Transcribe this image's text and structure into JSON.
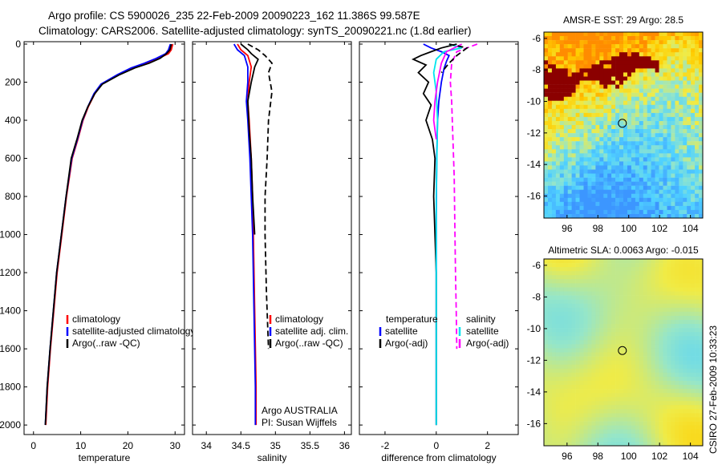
{
  "header": {
    "line1": "Argo profile: CS 5900026_235 22-Feb-2009 20090223_162 11.386S 99.587E",
    "line2": "Climatology: CARS2006. Satellite-adjusted climatology: synTS_20090221.nc (1.8d earlier)"
  },
  "colors": {
    "climatology": "#ff0000",
    "satellite": "#0000ff",
    "argo": "#000000",
    "temperature_diff": "#000000",
    "salinity_diff": "#ff00ff",
    "satellite_diff": "#00e5ee",
    "sst_land": "#8b0000",
    "sla_ocean": "#bfe07a"
  },
  "chart_data": [
    {
      "type": "line",
      "id": "temperature",
      "title": "",
      "xlabel": "temperature",
      "ylabel": "",
      "xlim": [
        -2,
        32
      ],
      "ylim": [
        2050,
        0
      ],
      "y_reversed": true,
      "xticks": [
        0,
        10,
        20,
        30
      ],
      "yticks": [
        0,
        200,
        400,
        600,
        800,
        1000,
        1200,
        1400,
        1600,
        1800,
        2000
      ],
      "legend": [
        "climatology",
        "satellite-adjusted climatology",
        "Argo(..raw -QC)"
      ],
      "legend_position": "lower-right",
      "series": [
        {
          "name": "climatology",
          "color_key": "climatology",
          "dash": false,
          "x": [
            29.5,
            29.2,
            28.6,
            26.5,
            24.0,
            21.0,
            18.0,
            14.5,
            13.0,
            11.6,
            10.5,
            9.4,
            8.2,
            7.0,
            6.0,
            5.0,
            4.3,
            3.6,
            3.0,
            2.6
          ],
          "y": [
            0,
            30,
            50,
            75,
            100,
            125,
            160,
            210,
            260,
            330,
            400,
            500,
            600,
            800,
            1000,
            1200,
            1400,
            1600,
            1800,
            2000
          ]
        },
        {
          "name": "satellite-adjusted climatology",
          "color_key": "satellite",
          "dash": false,
          "x": [
            29.0,
            28.6,
            28.0,
            26.0,
            23.5,
            20.7,
            17.8,
            14.3,
            12.8,
            11.5,
            10.4,
            9.3,
            8.1,
            6.9,
            5.9,
            4.9,
            4.2,
            3.5,
            2.9,
            2.5
          ],
          "y": [
            0,
            30,
            50,
            75,
            100,
            125,
            160,
            210,
            260,
            330,
            400,
            500,
            600,
            800,
            1000,
            1200,
            1400,
            1600,
            1800,
            2000
          ]
        },
        {
          "name": "Argo(..raw -QC)",
          "color_key": "argo",
          "dash": false,
          "x": [
            29.2,
            28.9,
            28.2,
            26.8,
            24.5,
            21.5,
            18.3,
            14.6,
            13.0,
            11.5,
            10.3,
            9.2,
            8.0,
            6.9,
            5.9,
            4.9,
            4.2,
            3.5,
            2.9,
            2.5
          ],
          "y": [
            0,
            30,
            50,
            75,
            100,
            125,
            160,
            210,
            260,
            330,
            400,
            500,
            600,
            800,
            1000,
            1200,
            1400,
            1600,
            1800,
            2000
          ]
        }
      ]
    },
    {
      "type": "line",
      "id": "salinity",
      "title": "",
      "xlabel": "salinity",
      "ylabel": "",
      "xlim": [
        33.8,
        36.1
      ],
      "ylim": [
        2050,
        0
      ],
      "y_reversed": true,
      "xticks": [
        34,
        34.5,
        35,
        35.5,
        36
      ],
      "xticklabels": [
        "34",
        "34.5",
        "35",
        "35.5",
        "36"
      ],
      "legend": [
        "climatology",
        "satellite adj. clim.",
        "Argo(..raw -QC)"
      ],
      "legend_position": "lower-right",
      "annotation": [
        "Argo AUSTRALIA",
        "PI: Susan Wijffels"
      ],
      "series": [
        {
          "name": "climatology",
          "color_key": "climatology",
          "dash": false,
          "x": [
            34.45,
            34.5,
            34.6,
            34.65,
            34.62,
            34.6,
            34.62,
            34.65,
            34.67,
            34.68,
            34.7,
            34.72,
            34.72
          ],
          "y": [
            0,
            30,
            60,
            120,
            200,
            300,
            400,
            600,
            800,
            1000,
            1400,
            1800,
            2000
          ]
        },
        {
          "name": "satellite adj. clim.",
          "color_key": "satellite",
          "dash": false,
          "x": [
            34.4,
            34.45,
            34.55,
            34.6,
            34.6,
            34.58,
            34.6,
            34.63,
            34.65,
            34.67,
            34.69,
            34.71,
            34.71
          ],
          "y": [
            0,
            30,
            60,
            120,
            200,
            300,
            400,
            600,
            800,
            1000,
            1400,
            1800,
            2000
          ]
        },
        {
          "name": "Argo(..raw -QC)",
          "color_key": "argo",
          "dash": false,
          "x": [
            34.5,
            34.6,
            34.65,
            34.75,
            34.7,
            34.65,
            34.6,
            34.62,
            34.65,
            34.67,
            34.7
          ],
          "y": [
            0,
            30,
            50,
            80,
            120,
            200,
            300,
            450,
            600,
            800,
            1000
          ]
        },
        {
          "name": "Argo(..raw -QC)",
          "color_key": "argo",
          "dash": true,
          "x": [
            34.6,
            34.75,
            34.85,
            34.95,
            34.9,
            34.95,
            34.9,
            34.88,
            34.85,
            34.85,
            34.87,
            34.9
          ],
          "y": [
            0,
            30,
            60,
            100,
            150,
            250,
            400,
            600,
            800,
            1000,
            1300,
            1600
          ]
        }
      ]
    },
    {
      "type": "line",
      "id": "difference",
      "title": "",
      "xlabel": "difference from climatology",
      "ylabel": "",
      "xlim": [
        -3,
        3.2
      ],
      "ylim": [
        2050,
        0
      ],
      "y_reversed": true,
      "xticks": [
        -2,
        0,
        2
      ],
      "legend_left": [
        "temperature",
        "satellite",
        "Argo(-adj)"
      ],
      "legend_right": [
        "salinity",
        "satellite",
        "Argo(-adj)"
      ],
      "series": [
        {
          "name": "temperature satellite",
          "color_key": "satellite",
          "dash": false,
          "x": [
            -0.5,
            -0.2,
            0.2,
            0.5,
            0.4,
            0.3,
            0.2,
            0.1,
            0.05,
            0.02,
            0.0,
            0.0,
            0.0,
            0.0
          ],
          "y": [
            0,
            20,
            40,
            60,
            90,
            130,
            200,
            300,
            400,
            600,
            900,
            1300,
            1700,
            2000
          ]
        },
        {
          "name": "temperature Argo(-adj)",
          "color_key": "temperature_diff",
          "dash": false,
          "x": [
            0.8,
            0.2,
            -0.2,
            -0.6,
            -0.9,
            -0.4,
            -0.7,
            -0.3,
            -0.5,
            -0.2,
            -0.4,
            -0.15,
            -0.05,
            -0.1,
            0.0,
            0.0,
            0.0
          ],
          "y": [
            0,
            20,
            40,
            60,
            80,
            110,
            150,
            200,
            260,
            320,
            400,
            500,
            600,
            800,
            1200,
            1600,
            2000
          ]
        },
        {
          "name": "salinity satellite",
          "color_key": "satellite_diff",
          "dash": false,
          "x": [
            0.5,
            1.0,
            0.3,
            0.0,
            -0.1,
            0.0,
            0.05,
            0.0,
            0.0,
            0.0
          ],
          "y": [
            0,
            20,
            40,
            80,
            150,
            250,
            400,
            800,
            1500,
            2000
          ]
        },
        {
          "name": "salinity Argo(-adj)",
          "color_key": "salinity_diff",
          "dash": false,
          "x": [
            1.0,
            0.4,
            0.2,
            0.05,
            -0.05,
            -0.1,
            0.0
          ],
          "y": [
            0,
            40,
            100,
            200,
            300,
            400,
            500
          ]
        },
        {
          "name": "salinity Argo(-adj) raw",
          "color_key": "salinity_diff",
          "dash": true,
          "x": [
            1.6,
            0.8,
            0.6,
            0.55,
            0.6,
            0.65,
            0.7,
            0.72,
            0.75,
            0.78,
            0.8
          ],
          "y": [
            0,
            40,
            100,
            200,
            300,
            500,
            700,
            900,
            1200,
            1400,
            1600
          ]
        },
        {
          "name": "temperature Argo(-adj) raw",
          "color_key": "temperature_diff",
          "dash": true,
          "x": [
            0.5,
            1.2,
            0.8,
            0.5,
            0.2
          ],
          "y": [
            0,
            20,
            60,
            100,
            150
          ]
        }
      ]
    },
    {
      "type": "heatmap",
      "id": "sst",
      "title": "AMSR-E SST: 29 Argo: 28.5",
      "xlim": [
        94.5,
        104.8
      ],
      "ylim": [
        -17.4,
        -5.6
      ],
      "xticks": [
        96,
        98,
        100,
        102,
        104
      ],
      "yticks": [
        -6,
        -8,
        -10,
        -12,
        -14,
        -16
      ],
      "float_position": [
        99.587,
        -11.386
      ]
    },
    {
      "type": "heatmap",
      "id": "sla",
      "title": "Altimetric SLA: 0.0063 Argo: -0.015",
      "xlim": [
        94.5,
        104.8
      ],
      "ylim": [
        -17.4,
        -5.6
      ],
      "xticks": [
        96,
        98,
        100,
        102,
        104
      ],
      "yticks": [
        -6,
        -8,
        -10,
        -12,
        -14,
        -16
      ],
      "float_position": [
        99.587,
        -11.386
      ]
    }
  ],
  "footer": {
    "credit": "CSIRO 27-Feb-2009 10:33:23"
  }
}
